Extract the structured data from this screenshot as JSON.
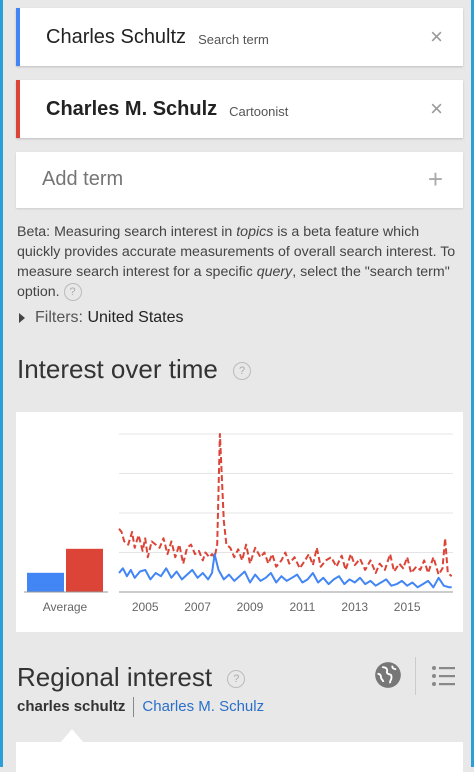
{
  "terms": [
    {
      "name": "Charles Schultz",
      "type": "Search term",
      "color": "#4285f4"
    },
    {
      "name": "Charles M. Schulz",
      "type": "Cartoonist",
      "color": "#db4437"
    }
  ],
  "add_term": {
    "placeholder": "Add term"
  },
  "beta_note": {
    "part1": "Beta: Measuring search interest in ",
    "topics": "topics",
    "part2": " is a beta feature which quickly provides accurate measurements of overall search interest. To measure search interest for a specific ",
    "query": "query",
    "part3": ", select the \"search term\" option."
  },
  "filters": {
    "label": "Filters:",
    "value": "United States"
  },
  "interest": {
    "title": "Interest over time"
  },
  "regional": {
    "title": "Regional interest",
    "active_term": "charles schultz",
    "other_term": "Charles M. Schulz"
  },
  "icons": {
    "help": "?",
    "close": "×",
    "plus": "+"
  },
  "chart_data": {
    "type": "line",
    "average_label": "Average",
    "averages": [
      {
        "name": "Charles Schultz",
        "value": 8,
        "color": "#4285f4"
      },
      {
        "name": "Charles M. Schulz",
        "value": 18,
        "color": "#db4437"
      }
    ],
    "xticks": [
      "2005",
      "2007",
      "2009",
      "2011",
      "2013",
      "2015"
    ],
    "x_range": [
      2004.0,
      2016.75
    ],
    "ylim": [
      0,
      100
    ],
    "grid": true,
    "series": [
      {
        "color": "#db4437",
        "dashed": true,
        "x": [
          2004.0,
          2004.1,
          2004.2,
          2004.35,
          2004.5,
          2004.6,
          2004.75,
          2004.9,
          2005.0,
          2005.1,
          2005.25,
          2005.4,
          2005.55,
          2005.7,
          2005.85,
          2006.0,
          2006.15,
          2006.3,
          2006.45,
          2006.6,
          2006.75,
          2006.9,
          2007.05,
          2007.2,
          2007.3,
          2007.45,
          2007.55,
          2007.65,
          2007.75,
          2007.85,
          2008.0,
          2008.1,
          2008.25,
          2008.4,
          2008.55,
          2008.7,
          2008.85,
          2009.0,
          2009.2,
          2009.4,
          2009.55,
          2009.7,
          2009.85,
          2010.0,
          2010.2,
          2010.35,
          2010.5,
          2010.7,
          2010.9,
          2011.1,
          2011.25,
          2011.4,
          2011.55,
          2011.7,
          2011.9,
          2012.1,
          2012.3,
          2012.5,
          2012.65,
          2012.85,
          2013.0,
          2013.2,
          2013.4,
          2013.6,
          2013.8,
          2013.95,
          2014.15,
          2014.35,
          2014.5,
          2014.7,
          2014.85,
          2015.0,
          2015.15,
          2015.35,
          2015.5,
          2015.65,
          2015.8,
          2016.0,
          2016.2,
          2016.35,
          2016.45,
          2016.55,
          2016.7
        ],
        "y": [
          40,
          38,
          32,
          30,
          38,
          28,
          36,
          26,
          34,
          22,
          32,
          30,
          28,
          34,
          24,
          32,
          22,
          30,
          18,
          28,
          30,
          24,
          26,
          20,
          25,
          22,
          24,
          22,
          30,
          100,
          45,
          30,
          28,
          22,
          27,
          20,
          30,
          18,
          28,
          22,
          25,
          18,
          24,
          16,
          20,
          25,
          18,
          22,
          15,
          20,
          24,
          17,
          28,
          16,
          20,
          22,
          16,
          23,
          14,
          24,
          17,
          21,
          14,
          20,
          12,
          18,
          14,
          24,
          13,
          18,
          15,
          22,
          12,
          16,
          14,
          20,
          12,
          22,
          11,
          15,
          34,
          12,
          10
        ]
      },
      {
        "color": "#4285f4",
        "dashed": false,
        "x": [
          2004.0,
          2004.15,
          2004.3,
          2004.45,
          2004.6,
          2004.8,
          2005.0,
          2005.2,
          2005.4,
          2005.6,
          2005.8,
          2006.0,
          2006.2,
          2006.4,
          2006.6,
          2006.8,
          2007.0,
          2007.2,
          2007.4,
          2007.55,
          2007.65,
          2007.8,
          2008.0,
          2008.2,
          2008.4,
          2008.6,
          2008.8,
          2009.0,
          2009.2,
          2009.4,
          2009.6,
          2009.8,
          2010.0,
          2010.2,
          2010.4,
          2010.6,
          2010.8,
          2011.0,
          2011.2,
          2011.4,
          2011.6,
          2011.8,
          2012.0,
          2012.2,
          2012.4,
          2012.6,
          2012.8,
          2013.0,
          2013.2,
          2013.4,
          2013.6,
          2013.8,
          2014.0,
          2014.2,
          2014.4,
          2014.6,
          2014.8,
          2015.0,
          2015.2,
          2015.4,
          2015.6,
          2015.8,
          2016.0,
          2016.2,
          2016.4,
          2016.6,
          2016.7
        ],
        "y": [
          12,
          15,
          10,
          14,
          9,
          13,
          14,
          8,
          12,
          10,
          15,
          9,
          13,
          8,
          11,
          14,
          9,
          12,
          8,
          12,
          24,
          14,
          8,
          11,
          7,
          10,
          13,
          6,
          11,
          7,
          9,
          12,
          6,
          10,
          7,
          9,
          11,
          6,
          8,
          12,
          6,
          9,
          5,
          8,
          10,
          5,
          8,
          6,
          9,
          5,
          7,
          4,
          6,
          8,
          4,
          5,
          7,
          4,
          6,
          3,
          5,
          7,
          3,
          9,
          4,
          3,
          3
        ]
      }
    ]
  }
}
